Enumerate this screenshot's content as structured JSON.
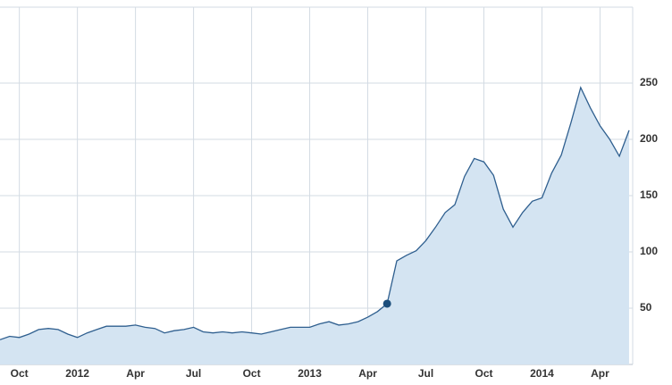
{
  "chart_data": {
    "type": "area",
    "categories": [
      null,
      null,
      "Oct",
      null,
      null,
      null,
      null,
      null,
      "2012",
      null,
      null,
      null,
      null,
      null,
      "Apr",
      null,
      null,
      null,
      null,
      null,
      "Jul",
      null,
      null,
      null,
      null,
      null,
      "Oct",
      null,
      null,
      null,
      null,
      null,
      "2013",
      null,
      null,
      null,
      null,
      null,
      "Apr",
      null,
      null,
      null,
      null,
      null,
      "Jul",
      null,
      null,
      null,
      null,
      null,
      "Oct",
      null,
      null,
      null,
      null,
      null,
      "2014",
      null,
      null,
      null,
      null,
      null,
      "Apr",
      null,
      null,
      null
    ],
    "series": [
      {
        "color": "#2f5f8f",
        "fill": "#d4e4f2",
        "values": [
          22,
          25,
          24,
          27,
          31,
          32,
          31,
          27,
          24,
          28,
          31,
          34,
          34,
          34,
          35,
          33,
          32,
          28,
          30,
          31,
          33,
          29,
          28,
          29,
          28,
          29,
          28,
          27,
          29,
          31,
          33,
          33,
          33,
          36,
          38,
          35,
          36,
          38,
          42,
          47,
          54,
          92,
          97,
          101,
          110,
          122,
          135,
          142,
          167,
          183,
          180,
          168,
          138,
          122,
          135,
          145,
          148,
          170,
          186,
          215,
          246,
          228,
          212,
          200,
          185,
          208
        ]
      }
    ],
    "highlight": 40,
    "ylim": [
      0,
      300
    ],
    "yticks": [
      50,
      100,
      150,
      200,
      250
    ],
    "grid": true,
    "y_axis_side": "right"
  }
}
